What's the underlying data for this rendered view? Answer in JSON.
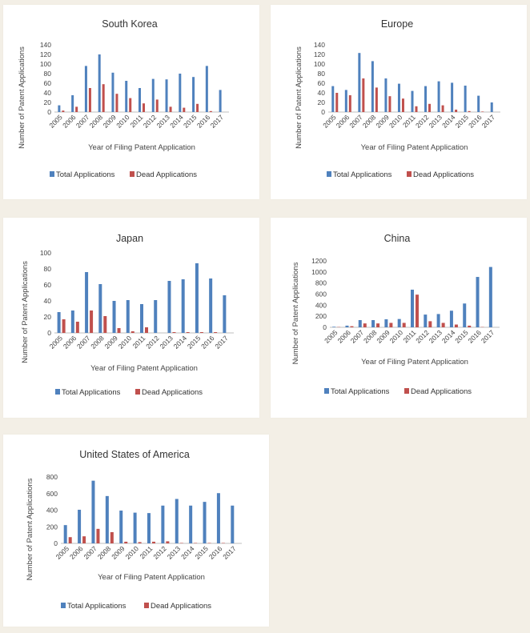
{
  "colors": {
    "total": "#4f81bd",
    "dead": "#c0504d",
    "axis": "#bfbfbf"
  },
  "chart_data": [
    {
      "id": "south-korea",
      "type": "bar",
      "title": "South Korea",
      "xlabel": "Year of Filing Patent Application",
      "ylabel": "Number of Patent Applications",
      "ylim": [
        0,
        140
      ],
      "yticks": [
        0,
        20,
        40,
        60,
        80,
        100,
        120,
        140
      ],
      "categories": [
        "2005",
        "2006",
        "2007",
        "2008",
        "2009",
        "2010",
        "2011",
        "2012",
        "2013",
        "2014",
        "2015",
        "2016",
        "2017"
      ],
      "series": [
        {
          "name": "Total Applications",
          "values": [
            14,
            35,
            96,
            120,
            82,
            65,
            50,
            69,
            68,
            80,
            73,
            96,
            46
          ]
        },
        {
          "name": "Dead Applications",
          "values": [
            3,
            11,
            50,
            58,
            38,
            29,
            18,
            26,
            11,
            9,
            17,
            2,
            0
          ]
        }
      ]
    },
    {
      "id": "europe",
      "type": "bar",
      "title": "Europe",
      "xlabel": "Year of Filing Patent Application",
      "ylabel": "Number of Patent Applications",
      "ylim": [
        0,
        140
      ],
      "yticks": [
        0,
        20,
        40,
        60,
        80,
        100,
        120,
        140
      ],
      "categories": [
        "2005",
        "2006",
        "2007",
        "2008",
        "2009",
        "2010",
        "2011",
        "2012",
        "2013",
        "2014",
        "2015",
        "2016",
        "2017"
      ],
      "series": [
        {
          "name": "Total Applications",
          "values": [
            54,
            46,
            123,
            106,
            70,
            59,
            44,
            54,
            64,
            61,
            55,
            34,
            20
          ]
        },
        {
          "name": "Dead Applications",
          "values": [
            40,
            35,
            70,
            51,
            33,
            28,
            12,
            17,
            14,
            5,
            2,
            1,
            0
          ]
        }
      ]
    },
    {
      "id": "japan",
      "type": "bar",
      "title": "Japan",
      "xlabel": "Year of Filing Patent Application",
      "ylabel": "Number of Patent Applications",
      "ylim": [
        0,
        100
      ],
      "yticks": [
        0,
        20,
        40,
        60,
        80,
        100
      ],
      "categories": [
        "2005",
        "2006",
        "2007",
        "2008",
        "2009",
        "2010",
        "2011",
        "2012",
        "2013",
        "2014",
        "2015",
        "2016",
        "2017"
      ],
      "series": [
        {
          "name": "Total Applications",
          "values": [
            26,
            28,
            76,
            61,
            40,
            41,
            36,
            41,
            65,
            67,
            87,
            68,
            47
          ]
        },
        {
          "name": "Dead Applications",
          "values": [
            17,
            14,
            28,
            21,
            6,
            2,
            7,
            0,
            1,
            1,
            1,
            1,
            0
          ]
        }
      ]
    },
    {
      "id": "china",
      "type": "bar",
      "title": "China",
      "xlabel": "Year of Filing Patent Application",
      "ylabel": "Number of Patent Applications",
      "ylim": [
        0,
        1200
      ],
      "yticks": [
        0,
        200,
        400,
        600,
        800,
        1000,
        1200
      ],
      "categories": [
        "2005",
        "2006",
        "2007",
        "2008",
        "2009",
        "2010",
        "2011",
        "2012",
        "2013",
        "2014",
        "2015",
        "2016",
        "2017"
      ],
      "series": [
        {
          "name": "Total Applications",
          "values": [
            10,
            30,
            130,
            130,
            145,
            150,
            680,
            230,
            240,
            300,
            430,
            910,
            1090
          ]
        },
        {
          "name": "Dead Applications",
          "values": [
            5,
            20,
            70,
            70,
            80,
            80,
            590,
            110,
            80,
            50,
            30,
            5,
            0
          ]
        }
      ]
    },
    {
      "id": "usa",
      "type": "bar",
      "title": "United States of America",
      "xlabel": "Year of Filing Patent Application",
      "ylabel": "Number of Patent Applications",
      "ylim": [
        0,
        800
      ],
      "yticks": [
        0,
        200,
        400,
        600,
        800
      ],
      "categories": [
        "2005",
        "2006",
        "2007",
        "2008",
        "2009",
        "2010",
        "2011",
        "2012",
        "2013",
        "2014",
        "2015",
        "2016",
        "2017"
      ],
      "series": [
        {
          "name": "Total Applications",
          "values": [
            220,
            405,
            755,
            570,
            395,
            370,
            365,
            455,
            535,
            455,
            500,
            605,
            455
          ]
        },
        {
          "name": "Dead Applications",
          "values": [
            75,
            85,
            175,
            135,
            20,
            15,
            20,
            25,
            5,
            5,
            5,
            5,
            0
          ]
        }
      ]
    }
  ]
}
